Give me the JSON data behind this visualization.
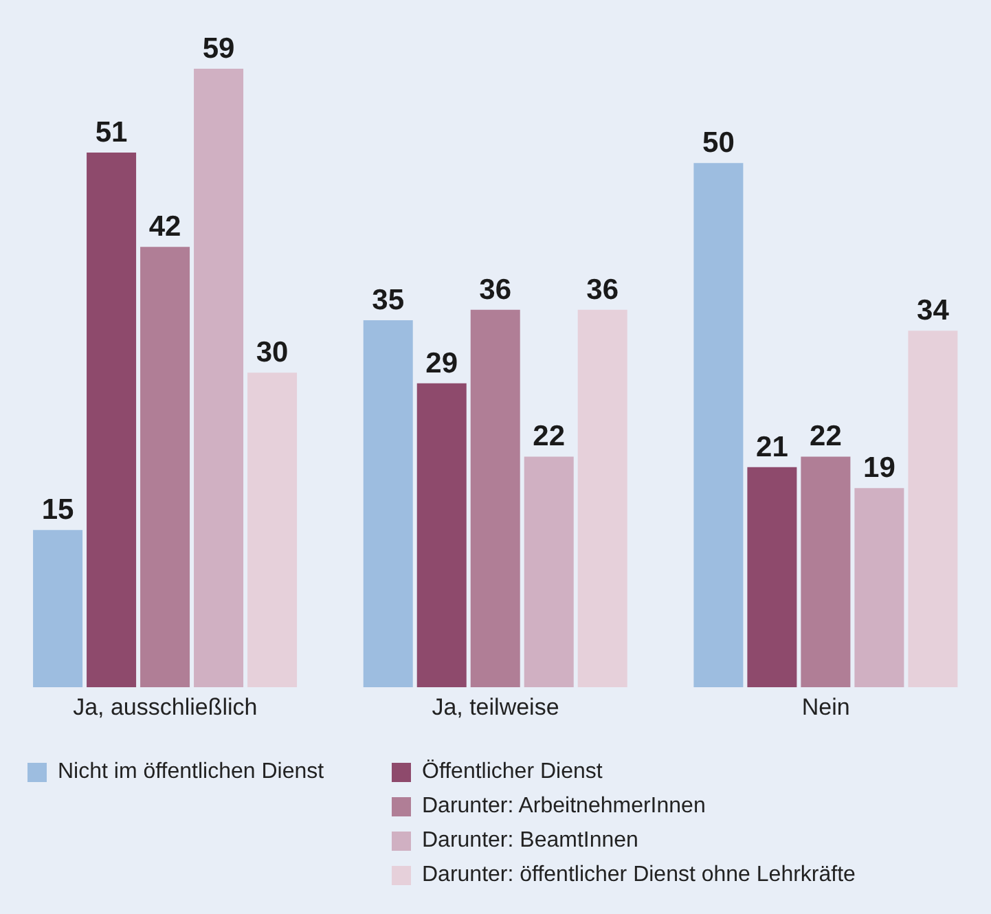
{
  "chart_data": {
    "type": "bar",
    "categories": [
      "Ja, ausschließlich",
      "Ja, teilweise",
      "Nein"
    ],
    "series": [
      {
        "name": "Nicht im öffentlichen Dienst",
        "color": "#9dbde0",
        "values": [
          15,
          35,
          50
        ]
      },
      {
        "name": "Öffentlicher Dienst",
        "color": "#8e4a6c",
        "values": [
          51,
          29,
          21
        ]
      },
      {
        "name": "Darunter: ArbeitnehmerInnen",
        "color": "#b07e96",
        "values": [
          42,
          36,
          22
        ]
      },
      {
        "name": "Darunter: BeamtInnen",
        "color": "#d0b0c2",
        "values": [
          59,
          22,
          19
        ]
      },
      {
        "name": "Darunter: öffentlicher Dienst ohne Lehrkräfte",
        "color": "#e6d0da",
        "values": [
          30,
          36,
          34
        ]
      }
    ],
    "data_labels": true,
    "legend": "bottom",
    "grid": false
  }
}
